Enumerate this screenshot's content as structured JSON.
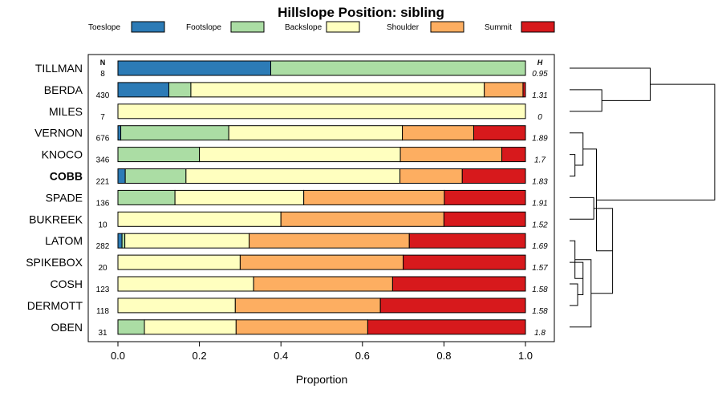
{
  "chart_data": {
    "type": "bar",
    "stacked": true,
    "orientation": "horizontal",
    "title": "Hillslope Position: sibling",
    "xlabel": "Proportion",
    "xlim": [
      0,
      1
    ],
    "xticks": [
      "0.0",
      "0.2",
      "0.4",
      "0.6",
      "0.8",
      "1.0"
    ],
    "xtick_values": [
      0,
      0.2,
      0.4,
      0.6,
      0.8,
      1.0
    ],
    "n_header": "N",
    "h_header": "H",
    "legend_position": "top",
    "series": [
      {
        "name": "Toeslope",
        "color": "#2c7bb6"
      },
      {
        "name": "Footslope",
        "color": "#abdda4"
      },
      {
        "name": "Backslope",
        "color": "#ffffbf"
      },
      {
        "name": "Shoulder",
        "color": "#fdae61"
      },
      {
        "name": "Summit",
        "color": "#d7191c"
      }
    ],
    "categories": [
      "TILLMAN",
      "BERDA",
      "MILES",
      "VERNON",
      "KNOCO",
      "COBB",
      "SPADE",
      "BUKREEK",
      "LATOM",
      "SPIKEBOX",
      "COSH",
      "DERMOTT",
      "OBEN"
    ],
    "highlight": "COBB",
    "rows": [
      {
        "label": "TILLMAN",
        "n": "8",
        "h": "0.95",
        "values": [
          0.375,
          0.625,
          0,
          0,
          0
        ]
      },
      {
        "label": "BERDA",
        "n": "430",
        "h": "1.31",
        "values": [
          0.125,
          0.054,
          0.72,
          0.095,
          0.006
        ]
      },
      {
        "label": "MILES",
        "n": "7",
        "h": "0",
        "values": [
          0,
          0,
          1.0,
          0,
          0
        ]
      },
      {
        "label": "VERNON",
        "n": "676",
        "h": "1.89",
        "values": [
          0.007,
          0.265,
          0.426,
          0.175,
          0.127
        ]
      },
      {
        "label": "KNOCO",
        "n": "346",
        "h": "1.7",
        "values": [
          0,
          0.2,
          0.493,
          0.249,
          0.058
        ]
      },
      {
        "label": "COBB",
        "n": "221",
        "h": "1.83",
        "values": [
          0.018,
          0.149,
          0.525,
          0.153,
          0.155
        ]
      },
      {
        "label": "SPADE",
        "n": "136",
        "h": "1.91",
        "values": [
          0,
          0.14,
          0.316,
          0.345,
          0.199
        ]
      },
      {
        "label": "BUKREEK",
        "n": "10",
        "h": "1.52",
        "values": [
          0,
          0,
          0.4,
          0.4,
          0.2
        ]
      },
      {
        "label": "LATOM",
        "n": "282",
        "h": "1.69",
        "values": [
          0.01,
          0.007,
          0.305,
          0.393,
          0.285
        ]
      },
      {
        "label": "SPIKEBOX",
        "n": "20",
        "h": "1.57",
        "values": [
          0,
          0,
          0.3,
          0.4,
          0.3
        ]
      },
      {
        "label": "COSH",
        "n": "123",
        "h": "1.58",
        "values": [
          0,
          0,
          0.333,
          0.341,
          0.326
        ]
      },
      {
        "label": "DERMOTT",
        "n": "118",
        "h": "1.58",
        "values": [
          0,
          0,
          0.288,
          0.356,
          0.356
        ]
      },
      {
        "label": "OBEN",
        "n": "31",
        "h": "1.8",
        "values": [
          0,
          0.065,
          0.225,
          0.323,
          0.387
        ]
      }
    ],
    "dendrogram": {
      "merges": [
        [
          [
            10,
            11
          ],
          0.03
        ],
        [
          [
            9,
            "m0"
          ],
          0.05
        ],
        [
          [
            8,
            "m1"
          ],
          0.02
        ],
        [
          [
            12,
            "m2"
          ],
          0.08
        ],
        [
          [
            6,
            7
          ],
          0.09
        ],
        [
          [
            "m4",
            "m3"
          ],
          0.16
        ],
        [
          [
            4,
            5
          ],
          0.02
        ],
        [
          [
            3,
            "m6"
          ],
          0.05
        ],
        [
          [
            "m7",
            "m5"
          ],
          0.1
        ],
        [
          [
            1,
            2
          ],
          0.12
        ],
        [
          [
            0,
            "m9"
          ],
          0.3
        ],
        [
          [
            "m10",
            "m8"
          ],
          0.54
        ]
      ]
    }
  }
}
